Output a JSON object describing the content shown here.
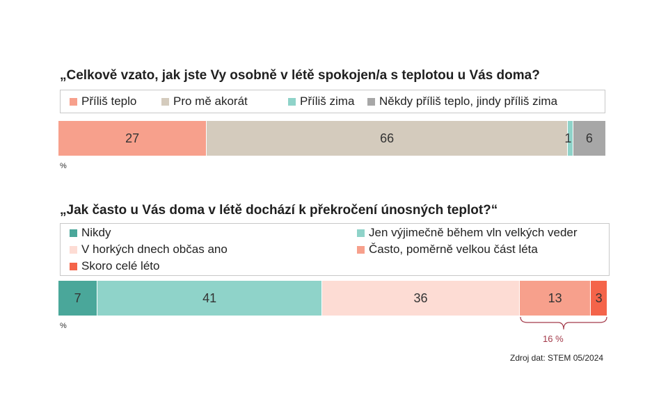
{
  "chart_data": [
    {
      "type": "bar",
      "orientation": "horizontal-stacked-100",
      "title": "„Celkově vzato, jak jste Vy osobně v létě spokojen/a s teplotou u Vás doma?",
      "unit_label": "%",
      "series": [
        {
          "name": "Příliš teplo",
          "value": 27,
          "label": "27",
          "color": "#f7a08c"
        },
        {
          "name": "Pro mě akorát",
          "value": 66,
          "label": "66",
          "color": "#d4cbbd"
        },
        {
          "name": "Příliš zima",
          "value": 1,
          "label": "1",
          "color": "#8fd3c9"
        },
        {
          "name": "Někdy příliš teplo, jindy příliš zima",
          "value": 6,
          "label": "6",
          "color": "#a7a7a7"
        }
      ]
    },
    {
      "type": "bar",
      "orientation": "horizontal-stacked-100",
      "title": "„Jak často u Vás doma v létě dochází k překročení únosných teplot?“",
      "unit_label": "%",
      "series": [
        {
          "name": "Nikdy",
          "value": 7,
          "label": "7",
          "color": "#4aa79a"
        },
        {
          "name": "Jen výjimečně během vln velkých veder",
          "value": 41,
          "label": "41",
          "color": "#8fd3c9"
        },
        {
          "name": "V horkých dnech občas ano",
          "value": 36,
          "label": "36",
          "color": "#fddcd4"
        },
        {
          "name": "Často, poměrně velkou část léta",
          "value": 13,
          "label": "13",
          "color": "#f7a08c"
        },
        {
          "name": "Skoro celé léto",
          "value": 3,
          "label": "3",
          "color": "#f4644a"
        }
      ],
      "annotation": {
        "text": "16 %",
        "covers": [
          "Často, poměrně velkou část léta",
          "Skoro celé léto"
        ],
        "color": "#a33a4a"
      }
    }
  ],
  "source": "Zdroj dat: STEM 05/2024"
}
